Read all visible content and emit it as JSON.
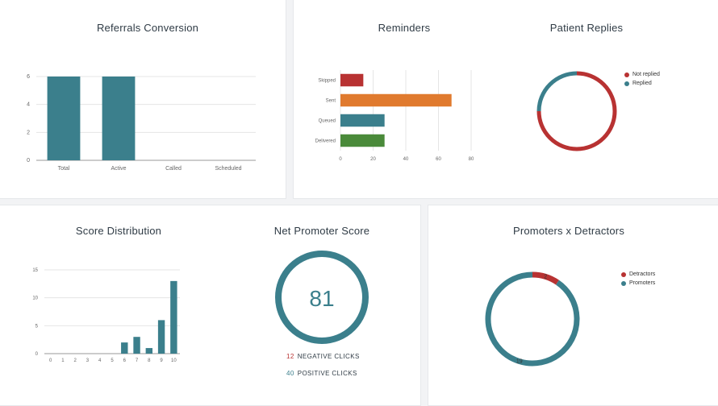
{
  "colors": {
    "teal": "#3b7f8c",
    "red": "#b83232",
    "orange": "#e07a2e",
    "green": "#4a8a3a",
    "grid": "#e5e5e5"
  },
  "referrals": {
    "title": "Referrals Conversion",
    "chart_data": {
      "type": "bar",
      "categories": [
        "Total",
        "Active",
        "Called",
        "Scheduled"
      ],
      "values": [
        6,
        6,
        0,
        0
      ],
      "y_ticks": [
        "0",
        "2",
        "4",
        "6"
      ],
      "ylim": [
        0,
        6
      ]
    }
  },
  "reminders": {
    "title": "Reminders",
    "chart_data": {
      "type": "bar",
      "orientation": "horizontal",
      "categories": [
        "Skipped",
        "Sent",
        "Queued",
        "Delivered"
      ],
      "values": [
        14,
        68,
        27,
        27
      ],
      "bar_colors": [
        "#b83232",
        "#e07a2e",
        "#3b7f8c",
        "#4a8a3a"
      ],
      "x_ticks": [
        "0",
        "20",
        "40",
        "60",
        "80"
      ],
      "xlim": [
        0,
        80
      ]
    }
  },
  "patient_replies": {
    "title": "Patient Replies",
    "legend": [
      "Not replied",
      "Replied"
    ],
    "chart_data": {
      "type": "pie",
      "style": "donut",
      "labels": [
        "Not replied",
        "Replied"
      ],
      "values": [
        75,
        25
      ],
      "colors": [
        "#b83232",
        "#3b7f8c"
      ]
    }
  },
  "score_distribution": {
    "title": "Score Distribution",
    "chart_data": {
      "type": "bar",
      "categories": [
        "0",
        "1",
        "2",
        "3",
        "4",
        "5",
        "6",
        "7",
        "8",
        "9",
        "10"
      ],
      "values": [
        0,
        0,
        0,
        0,
        0,
        0,
        2,
        3,
        1,
        6,
        13
      ],
      "y_ticks": [
        "0",
        "5",
        "10",
        "15"
      ],
      "ylim": [
        0,
        15
      ]
    }
  },
  "nps": {
    "title": "Net Promoter Score",
    "score": "81",
    "negative_count": "12",
    "negative_label": "NEGATIVE CLICKS",
    "positive_count": "40",
    "positive_label": "POSITIVE CLICKS"
  },
  "promoters_detractors": {
    "title": "Promoters x Detractors",
    "legend": [
      "Detractors",
      "Promoters"
    ],
    "chart_data": {
      "type": "pie",
      "style": "donut",
      "labels": [
        "Detractors",
        "Promoters"
      ],
      "values": [
        2,
        19
      ],
      "colors": [
        "#b83232",
        "#3b7f8c"
      ]
    }
  }
}
